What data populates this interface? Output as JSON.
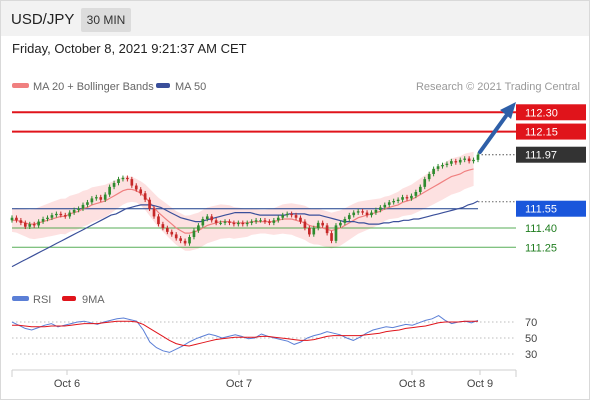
{
  "header": {
    "pair": "USD/JPY",
    "interval": "30 MIN",
    "datetime": "Friday, October 8, 2021 9:21:37 AM CET"
  },
  "credit": "Research © 2021 Trading Central",
  "colors": {
    "resistance": "#e0141b",
    "support": "#1a56db",
    "current": "#333333",
    "support_line": "#1a3e8c",
    "minor_level": "#2e9a2e",
    "minor_text": "#1f7d1f",
    "ma20": "#f08080",
    "ma50": "#3a4f9a",
    "bands": "#fcd7d7",
    "up_candle": "#2e8b2e",
    "down_candle": "#c62828",
    "rsi": "#5b7fd6",
    "rsi_ma": "#e0141b",
    "arrow": "#2e5fa8"
  },
  "chart_data": [
    {
      "type": "candlestick",
      "legend": [
        "MA 20 + Bollinger Bands",
        "MA 50"
      ],
      "x_ticks": [
        "Oct 6",
        "Oct 7",
        "Oct 8",
        "Oct 9"
      ],
      "ylim": [
        110.98,
        112.38
      ],
      "levels": [
        {
          "value": 112.3,
          "label": "112.30",
          "kind": "resistance"
        },
        {
          "value": 112.15,
          "label": "112.15",
          "kind": "resistance"
        },
        {
          "value": 111.97,
          "label": "111.97",
          "kind": "current"
        },
        {
          "value": 111.55,
          "label": "111.55",
          "kind": "support"
        },
        {
          "value": 111.4,
          "label": "111.40",
          "kind": "minor"
        },
        {
          "value": 111.25,
          "label": "111.25",
          "kind": "minor"
        }
      ],
      "closes": [
        111.48,
        111.46,
        111.44,
        111.41,
        111.43,
        111.42,
        111.45,
        111.47,
        111.48,
        111.5,
        111.51,
        111.5,
        111.49,
        111.52,
        111.54,
        111.55,
        111.58,
        111.6,
        111.63,
        111.64,
        111.62,
        111.66,
        111.72,
        111.75,
        111.78,
        111.79,
        111.78,
        111.73,
        111.7,
        111.67,
        111.62,
        111.55,
        111.49,
        111.43,
        111.4,
        111.37,
        111.35,
        111.32,
        111.3,
        111.28,
        111.33,
        111.38,
        111.42,
        111.47,
        111.49,
        111.46,
        111.44,
        111.44,
        111.45,
        111.44,
        111.43,
        111.44,
        111.43,
        111.44,
        111.45,
        111.46,
        111.46,
        111.45,
        111.44,
        111.46,
        111.48,
        111.5,
        111.51,
        111.5,
        111.48,
        111.45,
        111.4,
        111.35,
        111.4,
        111.44,
        111.42,
        111.36,
        111.3,
        111.42,
        111.44,
        111.47,
        111.5,
        111.52,
        111.53,
        111.52,
        111.5,
        111.52,
        111.54,
        111.56,
        111.58,
        111.6,
        111.61,
        111.62,
        111.64,
        111.63,
        111.65,
        111.68,
        111.72,
        111.78,
        111.82,
        111.86,
        111.88,
        111.89,
        111.9,
        111.92,
        111.91,
        111.93,
        111.94,
        111.92,
        111.93,
        111.97
      ],
      "ma20": [
        111.46,
        111.46,
        111.45,
        111.44,
        111.43,
        111.43,
        111.44,
        111.45,
        111.46,
        111.47,
        111.48,
        111.49,
        111.49,
        111.51,
        111.52,
        111.53,
        111.55,
        111.56,
        111.58,
        111.59,
        111.6,
        111.61,
        111.63,
        111.65,
        111.67,
        111.69,
        111.7,
        111.7,
        111.69,
        111.67,
        111.64,
        111.6,
        111.56,
        111.52,
        111.49,
        111.46,
        111.43,
        111.4,
        111.38,
        111.36,
        111.36,
        111.37,
        111.38,
        111.4,
        111.42,
        111.43,
        111.44,
        111.45,
        111.45,
        111.45,
        111.44,
        111.44,
        111.44,
        111.44,
        111.45,
        111.45,
        111.45,
        111.45,
        111.45,
        111.45,
        111.46,
        111.47,
        111.47,
        111.47,
        111.46,
        111.45,
        111.44,
        111.42,
        111.41,
        111.41,
        111.4,
        111.39,
        111.38,
        111.39,
        111.4,
        111.42,
        111.44,
        111.46,
        111.48,
        111.49,
        111.5,
        111.51,
        111.52,
        111.53,
        111.55,
        111.56,
        111.57,
        111.58,
        111.6,
        111.61,
        111.62,
        111.64,
        111.66,
        111.68,
        111.7,
        111.72,
        111.74,
        111.76,
        111.78,
        111.8,
        111.81,
        111.82,
        111.84,
        111.85,
        111.86
      ],
      "ma50": [
        111.1,
        111.12,
        111.14,
        111.16,
        111.18,
        111.2,
        111.22,
        111.24,
        111.26,
        111.28,
        111.3,
        111.32,
        111.34,
        111.36,
        111.38,
        111.4,
        111.42,
        111.44,
        111.46,
        111.48,
        111.5,
        111.51,
        111.53,
        111.55,
        111.56,
        111.57,
        111.58,
        111.58,
        111.58,
        111.57,
        111.56,
        111.54,
        111.52,
        111.5,
        111.48,
        111.47,
        111.46,
        111.45,
        111.45,
        111.46,
        111.47,
        111.48,
        111.49,
        111.5,
        111.51,
        111.52,
        111.52,
        111.52,
        111.52,
        111.51,
        111.5,
        111.5,
        111.5,
        111.5,
        111.5,
        111.5,
        111.51,
        111.51,
        111.51,
        111.51,
        111.5,
        111.5,
        111.5,
        111.49,
        111.48,
        111.47,
        111.46,
        111.45,
        111.45,
        111.45,
        111.44,
        111.44,
        111.43,
        111.43,
        111.43,
        111.44,
        111.44,
        111.45,
        111.45,
        111.46,
        111.46,
        111.47,
        111.47,
        111.48,
        111.49,
        111.5,
        111.51,
        111.52,
        111.53,
        111.54,
        111.55,
        111.56,
        111.58,
        111.59,
        111.61
      ]
    },
    {
      "type": "line",
      "legend": [
        "RSI",
        "9MA"
      ],
      "ylim": [
        20,
        85
      ],
      "y_ticks": [
        70,
        50,
        30
      ],
      "rsi": [
        70,
        66,
        62,
        60,
        63,
        66,
        68,
        64,
        66,
        68,
        70,
        71,
        69,
        67,
        70,
        72,
        74,
        75,
        73,
        71,
        60,
        45,
        38,
        34,
        32,
        36,
        40,
        45,
        49,
        52,
        55,
        53,
        50,
        52,
        54,
        52,
        49,
        50,
        55,
        52,
        50,
        48,
        46,
        42,
        45,
        50,
        53,
        55,
        58,
        56,
        54,
        50,
        47,
        51,
        56,
        60,
        62,
        64,
        63,
        65,
        67,
        66,
        69,
        72,
        74,
        78,
        72,
        68,
        70,
        71,
        69,
        72
      ],
      "rsi_ma": [
        66,
        66,
        65,
        64,
        64,
        64,
        65,
        65,
        65,
        66,
        67,
        68,
        68,
        68,
        69,
        70,
        71,
        71,
        71,
        70,
        67,
        62,
        57,
        52,
        47,
        43,
        41,
        40,
        42,
        44,
        46,
        48,
        49,
        50,
        51,
        51,
        51,
        51,
        52,
        52,
        51,
        50,
        49,
        48,
        47,
        47,
        48,
        50,
        52,
        53,
        53,
        53,
        53,
        53,
        54,
        55,
        56,
        58,
        59,
        60,
        62,
        63,
        64,
        65,
        67,
        69,
        70,
        70,
        70,
        71,
        71,
        71
      ]
    }
  ]
}
